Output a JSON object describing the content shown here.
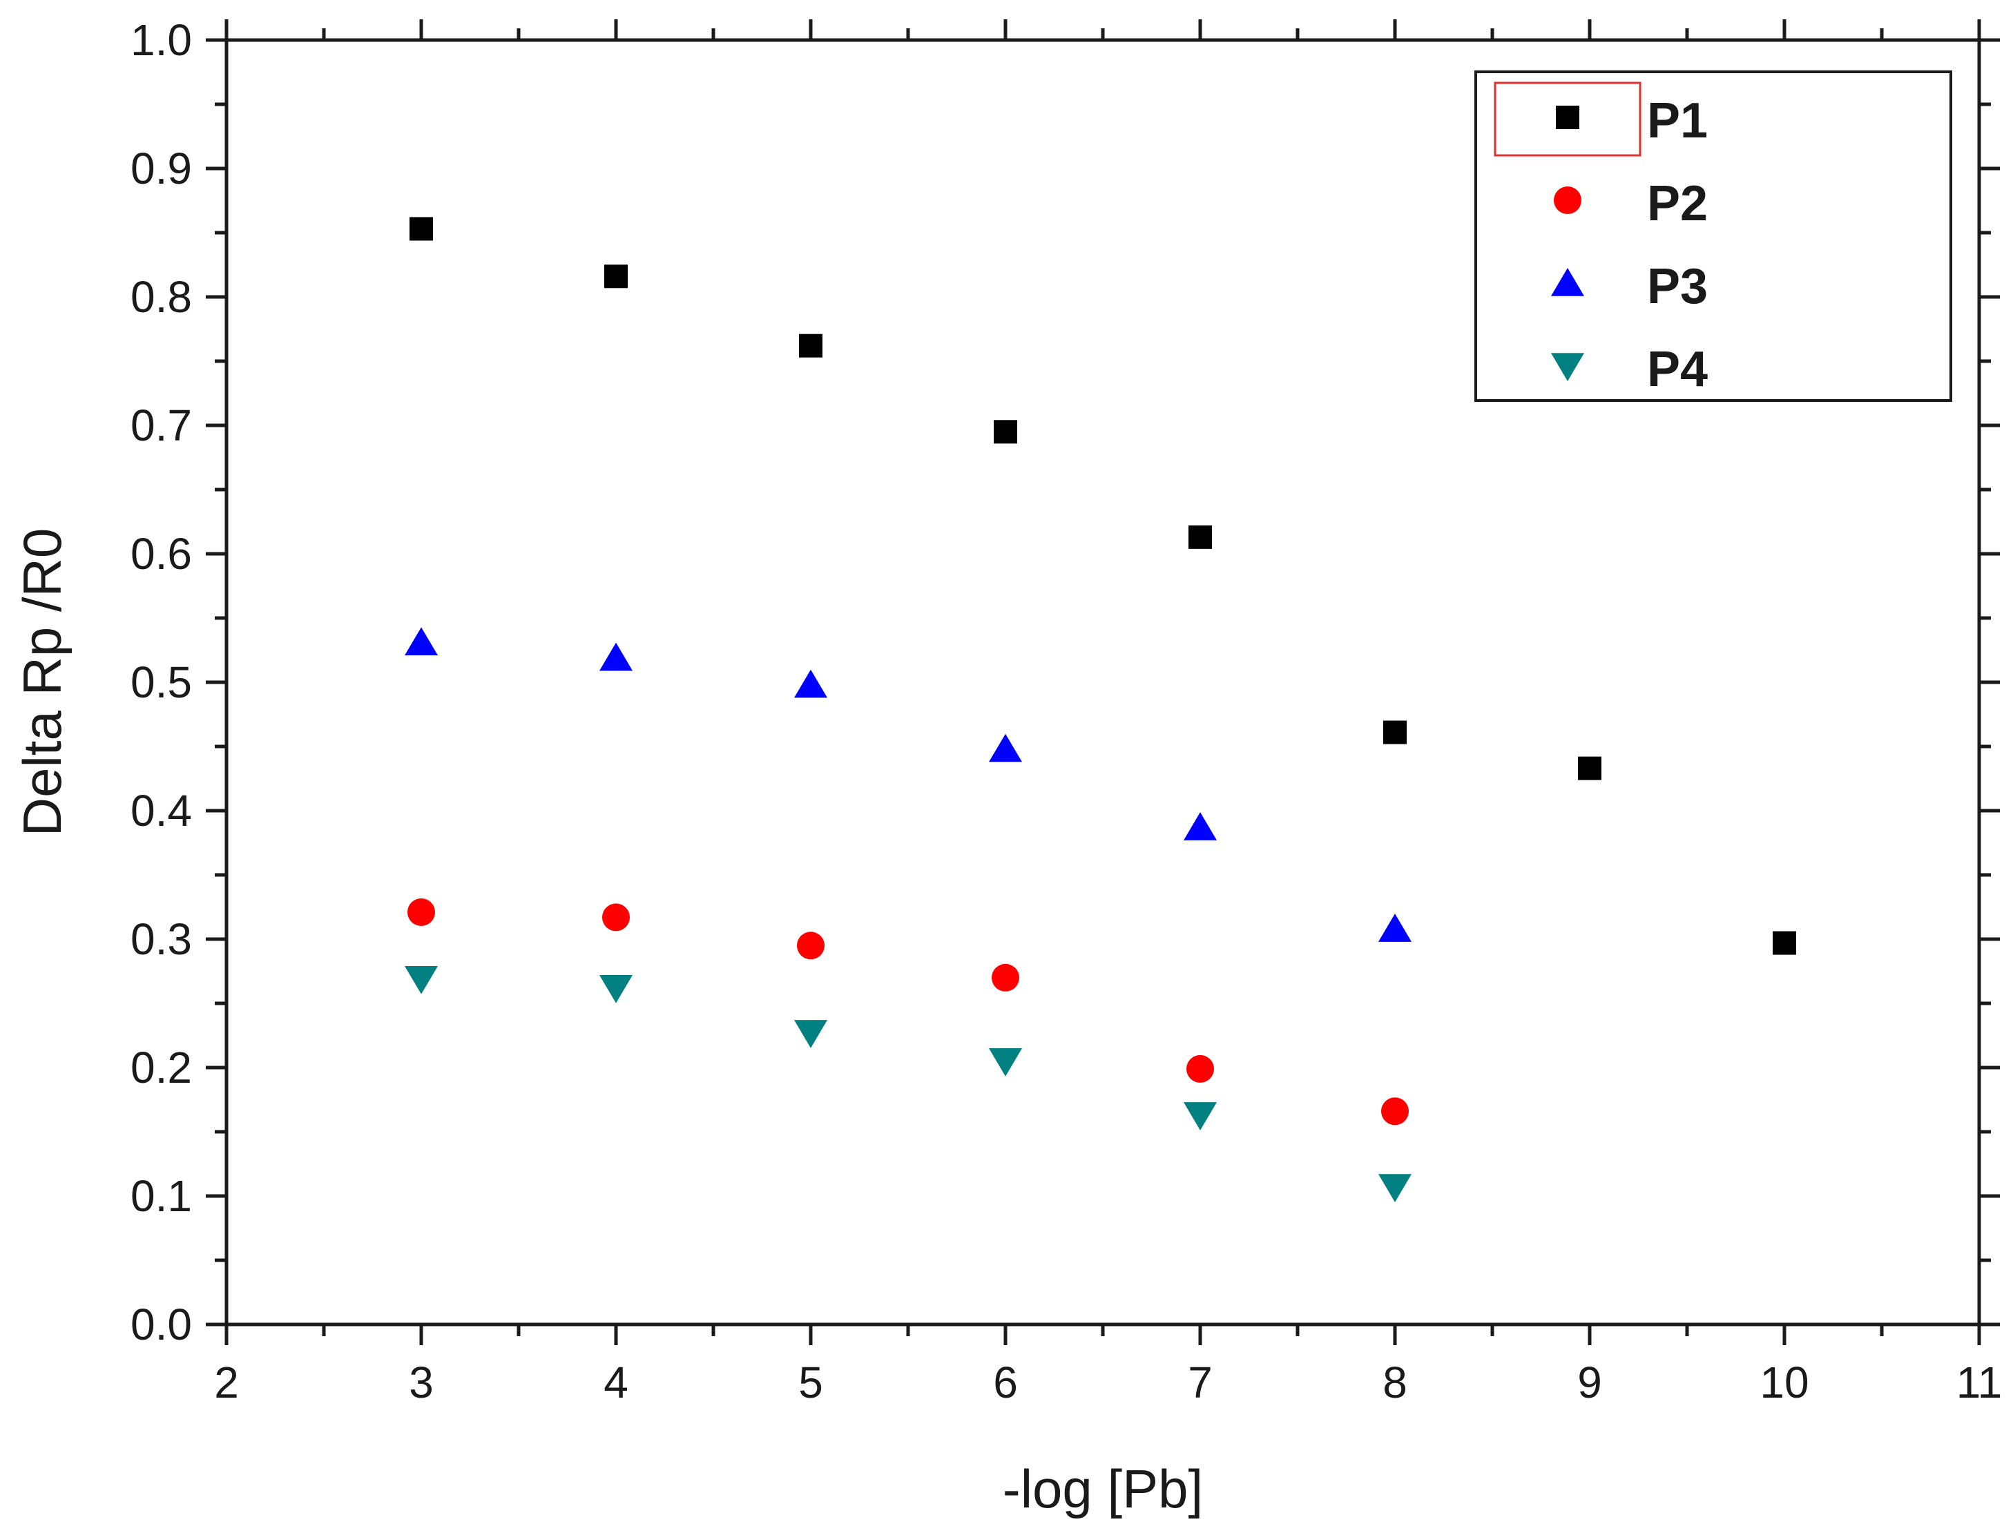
{
  "chart_data": {
    "type": "scatter",
    "title": "",
    "xlabel": "-log [Pb]",
    "ylabel": "Delta Rp /R0",
    "xlim": [
      2,
      11
    ],
    "ylim": [
      0.0,
      1.0
    ],
    "xticks": [
      2,
      3,
      4,
      5,
      6,
      7,
      8,
      9,
      10,
      11
    ],
    "yticks": [
      0.0,
      0.1,
      0.2,
      0.3,
      0.4,
      0.5,
      0.6,
      0.7,
      0.8,
      0.9,
      1.0
    ],
    "xtick_labels": [
      "2",
      "3",
      "4",
      "5",
      "6",
      "7",
      "8",
      "9",
      "10",
      "11"
    ],
    "ytick_labels": [
      "0.0",
      "0.1",
      "0.2",
      "0.3",
      "0.4",
      "0.5",
      "0.6",
      "0.7",
      "0.8",
      "0.9",
      "1.0"
    ],
    "grid": false,
    "legend_position": "top-right",
    "series": [
      {
        "name": "P1",
        "marker": "square",
        "color": "#000000",
        "x": [
          3,
          4,
          5,
          6,
          7,
          8,
          9,
          10
        ],
        "y": [
          0.853,
          0.816,
          0.762,
          0.695,
          0.613,
          0.461,
          0.433,
          0.297
        ]
      },
      {
        "name": "P2",
        "marker": "circle",
        "color": "#ff0000",
        "x": [
          3,
          4,
          5,
          6,
          7,
          8
        ],
        "y": [
          0.321,
          0.317,
          0.295,
          0.27,
          0.199,
          0.166
        ]
      },
      {
        "name": "P3",
        "marker": "triangle-up",
        "color": "#0000ff",
        "x": [
          3,
          4,
          5,
          6,
          7,
          8
        ],
        "y": [
          0.531,
          0.519,
          0.498,
          0.448,
          0.387,
          0.308
        ]
      },
      {
        "name": "P4",
        "marker": "triangle-down",
        "color": "#008080",
        "x": [
          3,
          4,
          5,
          6,
          7,
          8
        ],
        "y": [
          0.269,
          0.262,
          0.227,
          0.205,
          0.163,
          0.107
        ]
      }
    ]
  }
}
